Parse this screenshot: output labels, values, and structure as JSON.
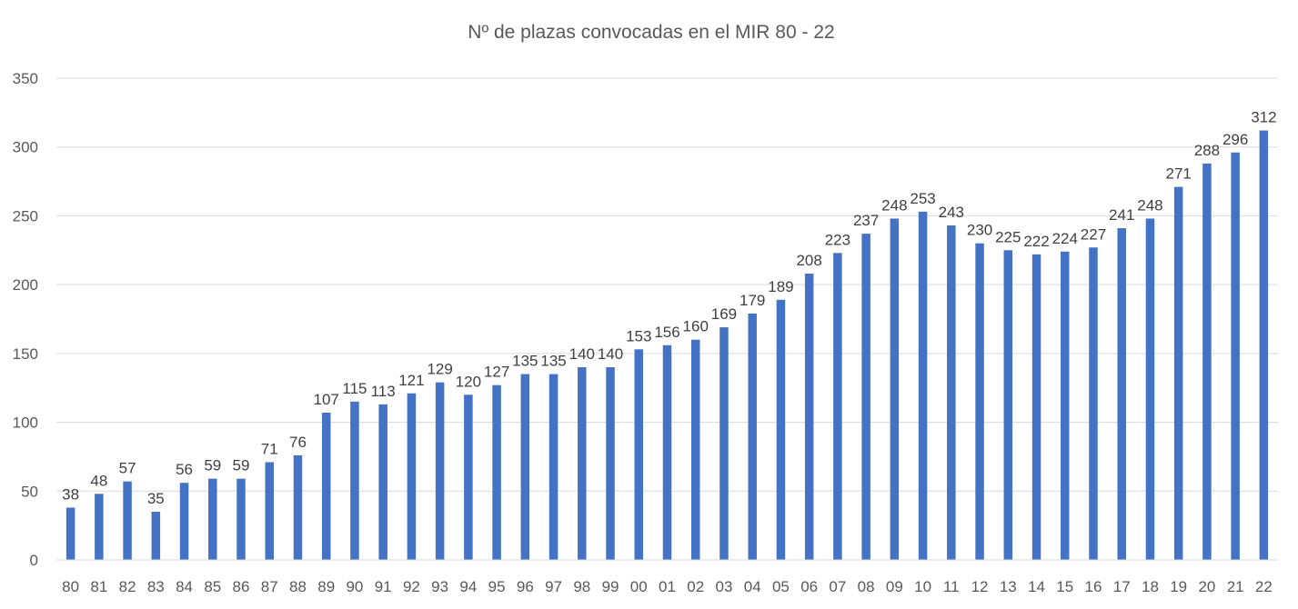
{
  "chart_data": {
    "type": "bar",
    "title": "Nº de plazas convocadas en el MIR 80 - 22",
    "xlabel": "",
    "ylabel": "",
    "ylim": [
      0,
      350
    ],
    "yticks": [
      0,
      50,
      100,
      150,
      200,
      250,
      300,
      350
    ],
    "grid": true,
    "legend": "none",
    "bar_color": "#4472c4",
    "categories": [
      "80",
      "81",
      "82",
      "83",
      "84",
      "85",
      "86",
      "87",
      "88",
      "89",
      "90",
      "91",
      "92",
      "93",
      "94",
      "95",
      "96",
      "97",
      "98",
      "99",
      "00",
      "01",
      "02",
      "03",
      "04",
      "05",
      "06",
      "07",
      "08",
      "09",
      "10",
      "11",
      "12",
      "13",
      "14",
      "15",
      "16",
      "17",
      "18",
      "19",
      "20",
      "21",
      "22"
    ],
    "values": [
      38,
      48,
      57,
      35,
      56,
      59,
      59,
      71,
      76,
      107,
      115,
      113,
      121,
      129,
      120,
      127,
      135,
      135,
      140,
      140,
      153,
      156,
      160,
      169,
      179,
      189,
      208,
      223,
      237,
      248,
      253,
      243,
      230,
      225,
      222,
      224,
      227,
      241,
      248,
      271,
      288,
      296,
      312
    ]
  }
}
